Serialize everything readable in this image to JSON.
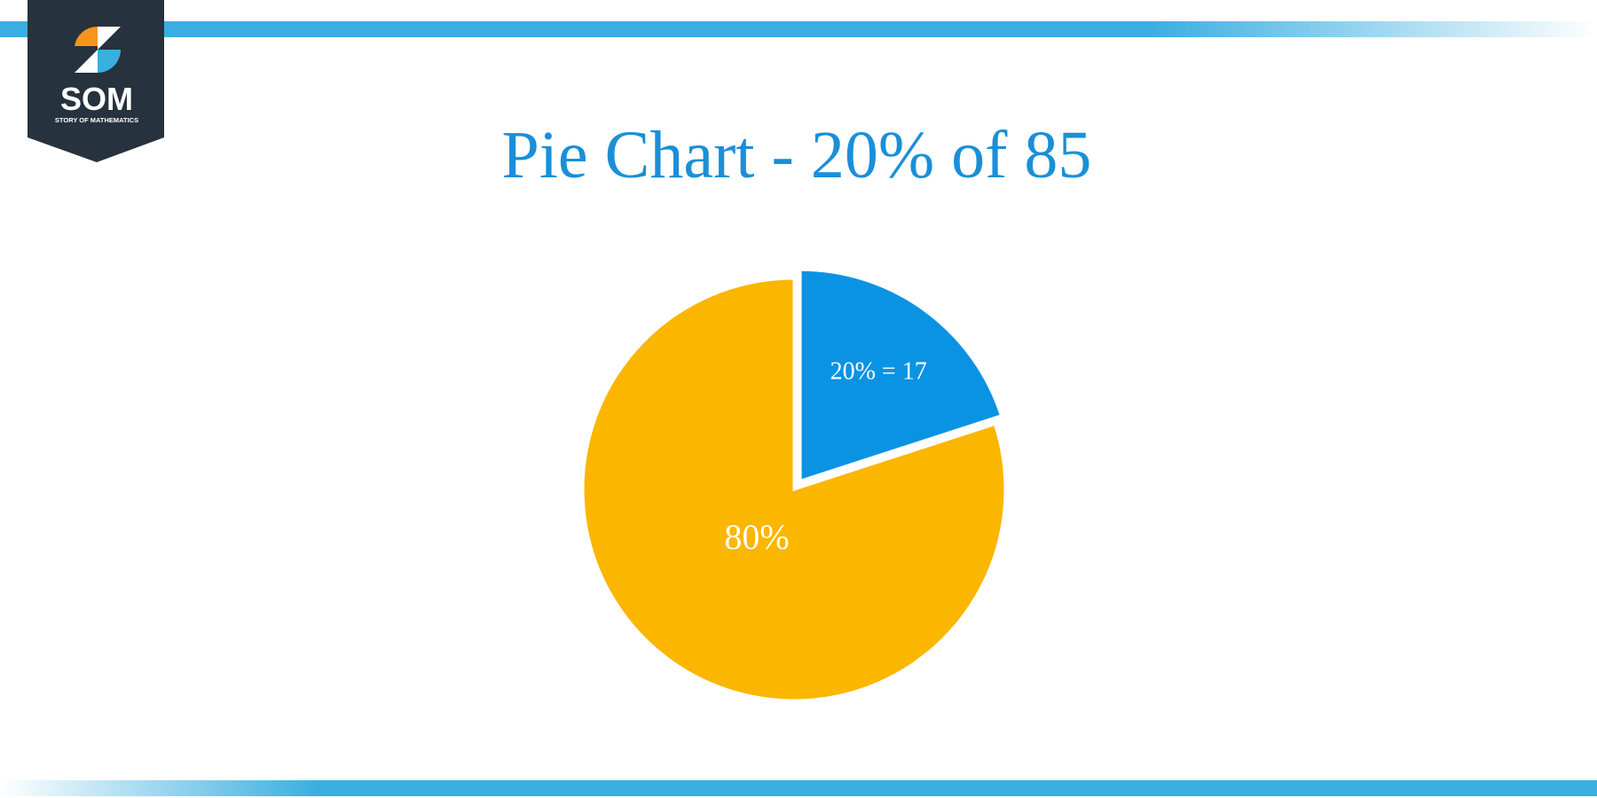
{
  "logo": {
    "text": "SOM",
    "subtitle": "STORY OF MATHEMATICS"
  },
  "chart_data": {
    "type": "pie",
    "title": "Pie Chart - 20% of 85",
    "values": [
      20,
      80
    ],
    "value_labels": [
      "20% = 17",
      "80%"
    ],
    "colors": [
      "#0b93e3",
      "#fbb600"
    ]
  }
}
